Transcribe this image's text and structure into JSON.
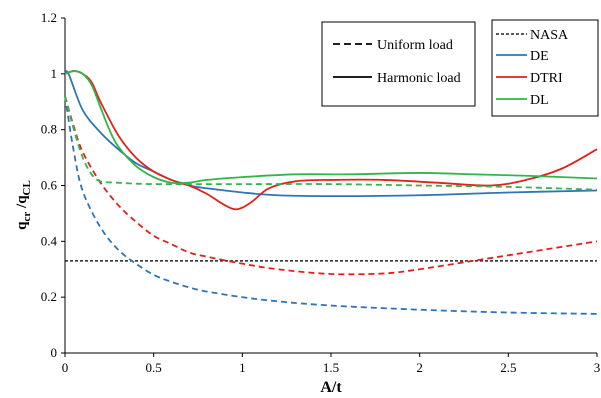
{
  "chart_data": {
    "type": "line",
    "xlabel": "A/t",
    "ylabel": {
      "main": "q",
      "sub1": "cr",
      "sep": " /q",
      "sub2": "CL"
    },
    "xlim": [
      0,
      3
    ],
    "ylim": [
      0,
      1.2
    ],
    "xticks": [
      "0",
      "0.5",
      "1",
      "1.5",
      "2",
      "2.5",
      "3"
    ],
    "yticks": [
      "0",
      "0.2",
      "0.4",
      "0.6",
      "0.8",
      "1",
      "1.2"
    ],
    "grid": false,
    "legend_style": {
      "placement": "top-center",
      "entries": [
        {
          "label": "Uniform load",
          "dash": "dashed"
        },
        {
          "label": "Harmonic load",
          "dash": "solid"
        }
      ]
    },
    "legend_series": {
      "placement": "top-right",
      "entries": [
        {
          "label": "NASA",
          "color": "#222222",
          "dash": "dotted"
        },
        {
          "label": "DE",
          "color": "#2e75b6",
          "dash": "solid"
        },
        {
          "label": "DTRI",
          "color": "#e3211c",
          "dash": "solid"
        },
        {
          "label": "DL",
          "color": "#33b54a",
          "dash": "solid"
        }
      ]
    },
    "series": [
      {
        "name": "NASA",
        "color": "#222222",
        "dash": "dotted",
        "x": [
          0,
          3
        ],
        "y": [
          0.33,
          0.33
        ]
      },
      {
        "name": "DE",
        "color": "#2e75b6",
        "dash": "solid",
        "x": [
          0,
          0.02,
          0.1,
          0.2,
          0.3,
          0.4,
          0.5,
          0.6,
          0.7,
          0.8,
          1.0,
          1.2,
          1.5,
          2.0,
          2.5,
          3.0
        ],
        "y": [
          1.0,
          1.0,
          0.87,
          0.79,
          0.73,
          0.68,
          0.65,
          0.62,
          0.6,
          0.59,
          0.575,
          0.565,
          0.562,
          0.565,
          0.575,
          0.582
        ]
      },
      {
        "name": "DTRI",
        "color": "#e3211c",
        "dash": "solid",
        "x": [
          0,
          0.05,
          0.1,
          0.15,
          0.2,
          0.3,
          0.4,
          0.5,
          0.6,
          0.7,
          0.8,
          0.9,
          0.97,
          1.05,
          1.15,
          1.3,
          1.5,
          1.8,
          2.1,
          2.4,
          2.6,
          2.8,
          3.0
        ],
        "y": [
          1.0,
          1.01,
          1.0,
          0.97,
          0.9,
          0.78,
          0.7,
          0.65,
          0.62,
          0.6,
          0.57,
          0.53,
          0.515,
          0.54,
          0.59,
          0.615,
          0.62,
          0.62,
          0.61,
          0.6,
          0.62,
          0.66,
          0.73
        ]
      },
      {
        "name": "DL",
        "color": "#33b54a",
        "dash": "solid",
        "x": [
          0,
          0.05,
          0.1,
          0.15,
          0.2,
          0.25,
          0.3,
          0.4,
          0.5,
          0.6,
          0.7,
          0.8,
          1.0,
          1.3,
          1.6,
          2.0,
          2.3,
          2.6,
          3.0
        ],
        "y": [
          1.0,
          1.01,
          1.0,
          0.96,
          0.88,
          0.8,
          0.74,
          0.67,
          0.63,
          0.61,
          0.61,
          0.62,
          0.63,
          0.64,
          0.64,
          0.645,
          0.64,
          0.635,
          0.625
        ]
      },
      {
        "name": "DE",
        "color": "#2e75b6",
        "dash": "dashed",
        "x": [
          0,
          0.05,
          0.1,
          0.2,
          0.3,
          0.4,
          0.5,
          0.6,
          0.7,
          0.8,
          1.0,
          1.2,
          1.5,
          2.0,
          2.5,
          3.0
        ],
        "y": [
          0.92,
          0.72,
          0.58,
          0.45,
          0.37,
          0.32,
          0.28,
          0.255,
          0.235,
          0.22,
          0.2,
          0.185,
          0.17,
          0.155,
          0.145,
          0.14
        ]
      },
      {
        "name": "DTRI",
        "color": "#e3211c",
        "dash": "dashed",
        "x": [
          0,
          0.05,
          0.1,
          0.2,
          0.3,
          0.4,
          0.5,
          0.6,
          0.7,
          0.8,
          1.0,
          1.2,
          1.5,
          1.8,
          2.0,
          2.3,
          2.6,
          3.0
        ],
        "y": [
          0.92,
          0.81,
          0.72,
          0.61,
          0.53,
          0.47,
          0.42,
          0.39,
          0.36,
          0.345,
          0.32,
          0.3,
          0.283,
          0.285,
          0.3,
          0.33,
          0.36,
          0.4
        ]
      },
      {
        "name": "DL",
        "color": "#33b54a",
        "dash": "dashed",
        "x": [
          0,
          0.05,
          0.1,
          0.15,
          0.2,
          0.3,
          0.5,
          1.0,
          1.5,
          2.0,
          2.5,
          3.0
        ],
        "y": [
          0.92,
          0.8,
          0.7,
          0.64,
          0.615,
          0.61,
          0.605,
          0.605,
          0.605,
          0.6,
          0.595,
          0.585
        ]
      }
    ]
  }
}
